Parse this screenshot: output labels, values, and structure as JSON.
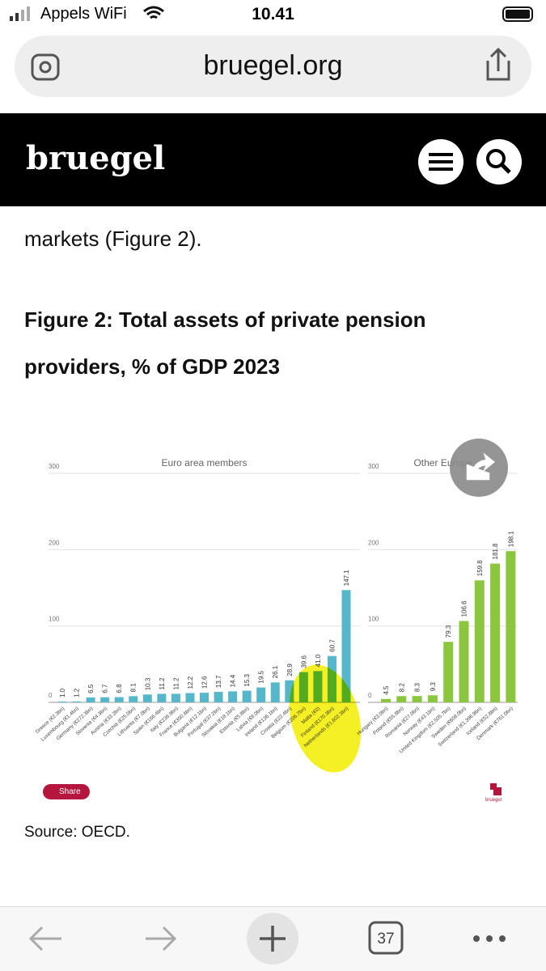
{
  "status_bar": {
    "carrier": "Appels WiFi",
    "time": "10.41"
  },
  "address_bar": {
    "url": "bruegel.org"
  },
  "site_header": {
    "logo": "bruegel"
  },
  "article": {
    "text": "markets (Figure 2).",
    "figure_title": "Figure 2: Total assets of private pension providers, % of GDP 2023",
    "share_button": "Share",
    "brand_mark": "bruegel",
    "source": "Source: OECD."
  },
  "toolbar": {
    "tab_count": "37"
  },
  "chart_data": [
    {
      "type": "bar",
      "title": "Euro area members",
      "categories": [
        "Greece (€2.3bn)",
        "Luxembourg (€1.4bn)",
        "Germany (€272.3bn)",
        "Slovenia (€4.3bn)",
        "Austria (€33.2bn)",
        "Czechia (€25.0bn)",
        "Lithuania (€7.0bn)",
        "Spain (€166.4bn)",
        "Italy (€238.9bn)",
        "France (€350.4bn)",
        "Bulgaria (€12.1bn)",
        "Portugal (€37.2bn)",
        "Slovakia (€18.1bn)",
        "Estonia (€5.8bn)",
        "Latvia (€8.0bn)",
        "Ireland (€136.1bn)",
        "Croatia (€22.4bn)",
        "Belgium (€206.7bn)",
        "Malta (€0)",
        "Finland (€170.3bn)",
        "Netherlands (€1,602.3bn)"
      ],
      "values": [
        1.0,
        1.2,
        6.5,
        6.7,
        6.8,
        8.1,
        10.3,
        11.2,
        11.2,
        12.2,
        12.6,
        13.7,
        14.4,
        15.3,
        19.5,
        26.1,
        28.9,
        39.6,
        41.0,
        60.7,
        147.1
      ],
      "value_labels": [
        "1.0",
        "1.2",
        "6.5",
        "6.7",
        "6.8",
        "8.1",
        "10.3",
        "11.2",
        "11.2",
        "12.2",
        "12.6",
        "13.7",
        "14.4",
        "15.3",
        "19.5",
        "26.1",
        "28.9",
        "39.6",
        "41.0",
        "60.7",
        "147.1"
      ],
      "color": "#56b7cb",
      "ylim": [
        0,
        300
      ],
      "yticks": [
        0,
        100,
        200,
        300
      ],
      "grid": true
    },
    {
      "type": "bar",
      "title": "Other Europe",
      "categories": [
        "Hungary (€3.0bn)",
        "Poland (€55.8bn)",
        "Romania (€27.0bn)",
        "Norway (€43.1bn)",
        "United Kingdom (€2,505.7bn)",
        "Sweden (€608.0bn)",
        "Switzerland (€1,396.9bn)",
        "Iceland (€52.8bn)",
        "Denmark (€761.0bn)"
      ],
      "values": [
        4.5,
        8.2,
        8.3,
        9.3,
        79.3,
        106.6,
        159.8,
        181.8,
        198.1
      ],
      "value_labels": [
        "4.5",
        "8.2",
        "8.3",
        "9.3",
        "79.3",
        "106.6",
        "159.8",
        "181.8",
        "198.1"
      ],
      "color": "#8cc63f",
      "ylim": [
        0,
        300
      ],
      "yticks": [
        0,
        100,
        200,
        300
      ],
      "grid": true
    }
  ]
}
